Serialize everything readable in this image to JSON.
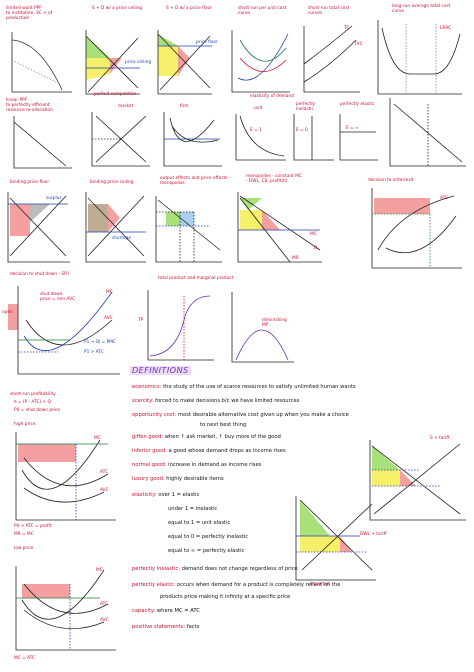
{
  "panels": {
    "p1": "limited want PPF\nto institution, SC + of production",
    "p2": "S + D w/ a price ceiling",
    "p3": "S + D w/ a price floor",
    "p4": "short-run per unit cost curve",
    "p5": "short-run total cost curves",
    "p6": "long-run average total cost curve",
    "p7": "linear PPF\nto perfectly efficient resource re-allocation",
    "p8": "perfect competition",
    "p8a": "market",
    "p8b": "firm",
    "p9": "elasticity of demand",
    "p9a": "unit",
    "p9b": "perfectly inelastic",
    "p9c": "perfectly elastic",
    "p10": "binding price floor",
    "p11": "binding price ceiling",
    "p12": "output effects and price effects - monopolies",
    "p13": "monopolies - constant MC\n- DWL, CS, profit(π)",
    "p14": "decision to enter/exit",
    "p15": "decision to shut down - SR?",
    "p16": "total product and marginal product",
    "p17": "short-run profitability",
    "p18": "high price",
    "p19": "low price"
  },
  "labels": {
    "price_floor": "price floor",
    "price_ceiling": "price ceiling",
    "tc": "TC",
    "tvc": "TVC",
    "lrac": "LRAC",
    "mc": "MC",
    "atc": "ATC",
    "avc": "AVC",
    "mr": "MR",
    "d": "D",
    "s": "S",
    "q": "Q",
    "p": "P",
    "e1": "E = 1",
    "e0": "E = 0",
    "einf": "E = ∞",
    "shutdown": "shut down\nprice = min AVC",
    "open": "open",
    "closed": "closed",
    "pc_atc": "P1 → Ql = PMC",
    "pc_avc": "P1 > ATC",
    "profitable": "profitable",
    "short_run_formula": "π = (P - ATC) × Q",
    "p_shutdown": "P0 = shut down price",
    "p_gt_atc": "P0 > ATC = profit",
    "mr_mc_atc": "MR = MC = ATC",
    "mr_mc": "MR = MC",
    "mc_atc": "MC = ATC",
    "qd": "Qd",
    "qs": "Qs",
    "shortage": "shortage",
    "surplus": "surplus",
    "dwl": "DWL",
    "cs": "CS",
    "ps": "PS",
    "tp": "TP",
    "mp": "MP",
    "ql": "QL",
    "diminishing": "diminishing MP",
    "price_taker": "price taker",
    "s_tariff": "S + tariff",
    "dwl_tariff": "DWL + tariff",
    "tariff": "tariff",
    "imported": "imported"
  },
  "definitions": {
    "header": "DEFINITIONS",
    "items": [
      {
        "term": "economics:",
        "text": " the study of the use of scarce resources to satisfy unlimited human wants"
      },
      {
        "term": "scarcity:",
        "text": " forced to make decisions b/c we have limited resources"
      },
      {
        "term": "opportunity cost:",
        "text": " most desirable alternative cost given up when you make a choice"
      },
      {
        "term": "",
        "text": "to next best thing"
      },
      {
        "term": "giffen good:",
        "text": " when ↑ ask market, ↑ buy more of the good"
      },
      {
        "term": "inferior good:",
        "text": " a good whose demand drops as income rises"
      },
      {
        "term": "normal good:",
        "text": " increase in demand as income rises"
      },
      {
        "term": "luxury good:",
        "text": " highly desirable items"
      },
      {
        "term": "elasticity:",
        "text": " over 1 = elastic"
      },
      {
        "term": "",
        "text": "under 1 = inelastic"
      },
      {
        "term": "",
        "text": "equal to 1 = unit elastic"
      },
      {
        "term": "",
        "text": "equal to 0 = perfectly inelastic"
      },
      {
        "term": "",
        "text": "equal to ∞ = perfectly elastic"
      },
      {
        "term": "perfectly inelastic:",
        "text": " demand does not change regardless of price"
      },
      {
        "term": "perfectly elastic:",
        "text": " occurs when demand for a product is completely reliant on the"
      },
      {
        "term": "",
        "text": "products price making it infinity at a specific price"
      },
      {
        "term": "capacity:",
        "text": " where MC = ATC"
      },
      {
        "term": "positive statements:",
        "text": " facts"
      }
    ]
  },
  "colors": {
    "title_red": "#c8102e",
    "blue": "#1f3fae",
    "green_fill": "#a8e07a",
    "yellow_fill": "#f5ef6a",
    "red_fill": "#f4a0a0",
    "blue_fill": "#a8d0f0",
    "purple_hl": "#eadcf7"
  }
}
